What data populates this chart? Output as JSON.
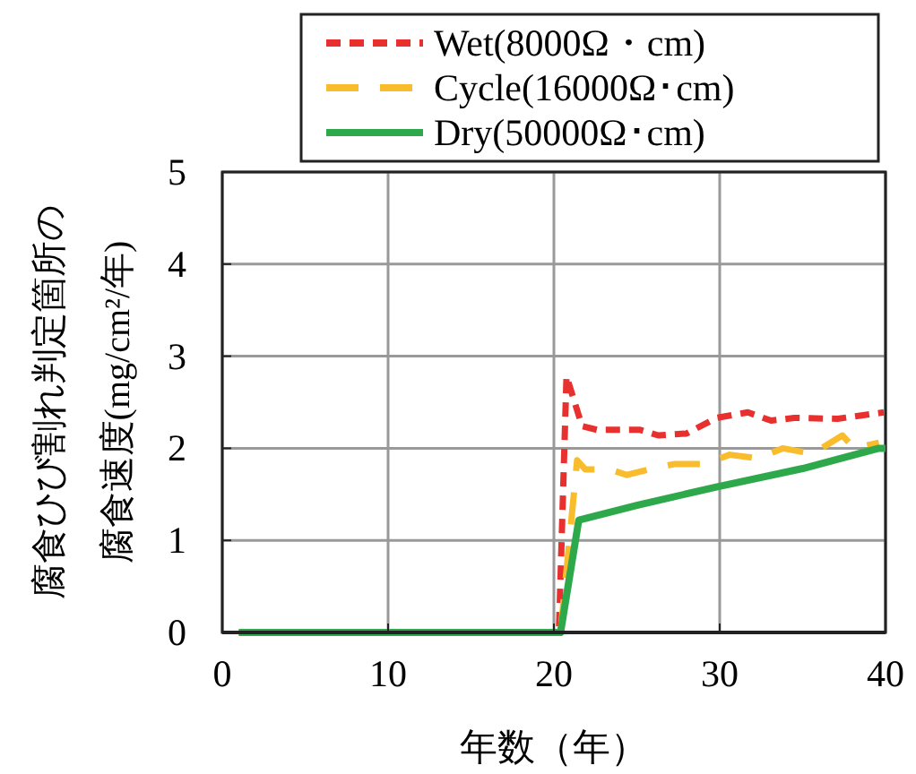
{
  "chart_data": {
    "type": "line",
    "xlabel": "年数（年）",
    "ylabel": "腐食ひび割れ判定箇所の腐食速度(mg/cm²/年)",
    "xlim": [
      0,
      40
    ],
    "xticks": [
      0,
      10,
      20,
      30,
      40
    ],
    "ylim": [
      0,
      5
    ],
    "yticks": [
      0,
      1,
      2,
      3,
      4,
      5
    ],
    "grid": true,
    "legend": "top",
    "series": [
      {
        "name": "Wet(8000Ω・cm)",
        "color": "#e8312f",
        "line_style": "dashed",
        "x": [
          1,
          20.3,
          20.76,
          21.2,
          21.7,
          22.6,
          25.2,
          26.3,
          28,
          29.8,
          31.7,
          33.1,
          34.5,
          37.1,
          39.9
        ],
        "values": [
          0,
          0,
          2.78,
          2.53,
          2.24,
          2.2,
          2.2,
          2.14,
          2.16,
          2.33,
          2.39,
          2.3,
          2.33,
          2.32,
          2.39
        ]
      },
      {
        "name": "Cycle(16000Ω･cm)",
        "color": "#f9bc2c",
        "line_style": "longdash",
        "x": [
          1,
          20.4,
          21.4,
          21.9,
          23.4,
          24.4,
          25.7,
          27.3,
          29.1,
          30.6,
          32.3,
          33.8,
          35.6,
          37.4,
          38.1,
          39.6
        ],
        "values": [
          0,
          0,
          1.87,
          1.77,
          1.77,
          1.71,
          1.77,
          1.83,
          1.83,
          1.93,
          1.89,
          2.0,
          1.94,
          2.14,
          2.0,
          2.06
        ]
      },
      {
        "name": "Dry(50000Ω･cm)",
        "color": "#2da84a",
        "line_style": "solid",
        "x": [
          1,
          20.4,
          21.5,
          25,
          29.8,
          35,
          39.6,
          40
        ],
        "values": [
          0,
          0,
          1.22,
          1.38,
          1.58,
          1.78,
          2.0,
          2.0
        ]
      }
    ]
  }
}
